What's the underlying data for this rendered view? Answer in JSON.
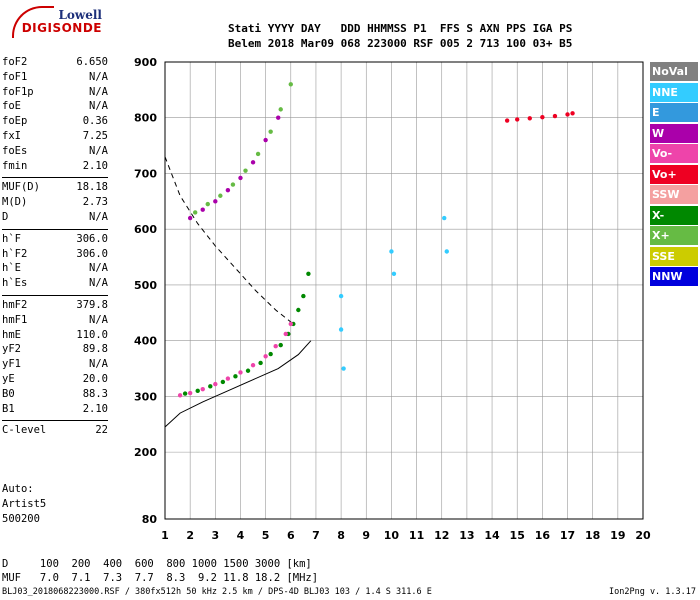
{
  "logo": {
    "brand": "Lowell",
    "product": "DIGISONDE"
  },
  "header": {
    "line1": "Stati YYYY DAY   DDD HHMMSS P1  FFS S AXN PPS IGA PS",
    "line2": "Belem 2018 Mar09 068 223000 RSF 005 2 713 100 03+ B5"
  },
  "params": [
    {
      "key": "foF2",
      "value": "6.650"
    },
    {
      "key": "foF1",
      "value": "N/A"
    },
    {
      "key": "foF1p",
      "value": "N/A"
    },
    {
      "key": "foE",
      "value": "N/A"
    },
    {
      "key": "foEp",
      "value": "0.36"
    },
    {
      "key": "fxI",
      "value": "7.25"
    },
    {
      "key": "foEs",
      "value": "N/A"
    },
    {
      "key": "fmin",
      "value": "2.10"
    }
  ],
  "params2": [
    {
      "key": "MUF(D)",
      "value": "18.18"
    },
    {
      "key": "M(D)",
      "value": "2.73"
    },
    {
      "key": "D",
      "value": "N/A"
    }
  ],
  "params3": [
    {
      "key": "h`F",
      "value": "306.0"
    },
    {
      "key": "h`F2",
      "value": "306.0"
    },
    {
      "key": "h`E",
      "value": "N/A"
    },
    {
      "key": "h`Es",
      "value": "N/A"
    }
  ],
  "params4": [
    {
      "key": "hmF2",
      "value": "379.8"
    },
    {
      "key": "hmF1",
      "value": "N/A"
    },
    {
      "key": "hmE",
      "value": "110.0"
    },
    {
      "key": "yF2",
      "value": "89.8"
    },
    {
      "key": "yF1",
      "value": "N/A"
    },
    {
      "key": "yE",
      "value": "20.0"
    },
    {
      "key": "B0",
      "value": "88.3"
    },
    {
      "key": "B1",
      "value": "2.10"
    }
  ],
  "params5": [
    {
      "key": "C-level",
      "value": "22"
    }
  ],
  "auto": {
    "line1": "Auto:",
    "line2": "Artist5",
    "line3": "500200"
  },
  "dmuf": {
    "d_line": "D     100  200  400  600  800 1000 1500 3000 [km]",
    "muf_line": "MUF   7.0  7.1  7.3  7.7  8.3  9.2 11.8 18.2 [MHz]"
  },
  "footer": {
    "left": "BLJ03_2018068223000.RSF / 380fx512h 50 kHz 2.5 km / DPS-4D BLJ03 103 / 1.4 S 311.6 E",
    "right": "Ion2Png v. 1.3.17"
  },
  "legend": [
    {
      "label": "NoVal",
      "color": "#808080"
    },
    {
      "label": "NNE",
      "color": "#33ccff"
    },
    {
      "label": "E",
      "color": "#3399dd"
    },
    {
      "label": "W",
      "color": "#aa00aa"
    },
    {
      "label": "Vo-",
      "color": "#ee44aa"
    },
    {
      "label": "Vo+",
      "color": "#ee0022"
    },
    {
      "label": "SSW",
      "color": "#f4a0a0"
    },
    {
      "label": "X-",
      "color": "#008800"
    },
    {
      "label": "X+",
      "color": "#66bb44"
    },
    {
      "label": "SSE",
      "color": "#cccc00"
    },
    {
      "label": "NNW",
      "color": "#0000dd"
    }
  ],
  "chart_data": {
    "type": "scatter",
    "xlabel": "",
    "ylabel": "",
    "xlim": [
      1,
      20
    ],
    "ylim": [
      80,
      900
    ],
    "x_ticks": [
      1,
      2,
      3,
      4,
      5,
      6,
      7,
      8,
      9,
      10,
      11,
      12,
      13,
      14,
      15,
      16,
      17,
      18,
      19,
      20
    ],
    "y_ticks": [
      80,
      200,
      300,
      400,
      500,
      600,
      700,
      800,
      900
    ],
    "grid": true,
    "series": [
      {
        "name": "X-",
        "color": "#008800",
        "x": [
          1.8,
          2.3,
          2.8,
          3.3,
          3.8,
          4.3,
          4.8,
          5.2,
          5.6,
          5.9,
          6.1,
          6.3,
          6.5,
          6.7
        ],
        "y": [
          305,
          310,
          318,
          326,
          336,
          346,
          360,
          376,
          392,
          412,
          430,
          455,
          480,
          520
        ]
      },
      {
        "name": "Vo-",
        "color": "#ee44aa",
        "x": [
          1.6,
          2.0,
          2.5,
          3.0,
          3.5,
          4.0,
          4.5,
          5.0,
          5.4,
          5.8,
          6.0
        ],
        "y": [
          302,
          306,
          313,
          322,
          332,
          343,
          356,
          372,
          390,
          412,
          430
        ]
      },
      {
        "name": "W",
        "color": "#aa00aa",
        "x": [
          2.0,
          2.5,
          3.0,
          3.5,
          4.0,
          4.5,
          5.0,
          5.5
        ],
        "y": [
          620,
          635,
          650,
          670,
          692,
          720,
          760,
          800
        ]
      },
      {
        "name": "X+",
        "color": "#66bb44",
        "x": [
          2.2,
          2.7,
          3.2,
          3.7,
          4.2,
          4.7,
          5.2,
          5.6,
          6.0
        ],
        "y": [
          630,
          645,
          660,
          680,
          705,
          735,
          775,
          815,
          860
        ]
      },
      {
        "name": "Vo+",
        "color": "#ee0022",
        "x": [
          14.6,
          15.0,
          15.5,
          16.0,
          16.5,
          17.0,
          17.2
        ],
        "y": [
          795,
          797,
          799,
          801,
          803,
          806,
          808
        ]
      },
      {
        "name": "NNE",
        "color": "#33ccff",
        "x": [
          8.0,
          8.0,
          8.1,
          10.0,
          10.1,
          12.1,
          12.2
        ],
        "y": [
          480,
          420,
          350,
          560,
          520,
          620,
          560
        ]
      }
    ],
    "lines": [
      {
        "name": "true-height",
        "style": "solid",
        "x": [
          1.0,
          1.6,
          2.5,
          3.5,
          4.5,
          5.5,
          6.3,
          6.8
        ],
        "y": [
          245,
          270,
          290,
          310,
          330,
          350,
          375,
          400
        ]
      },
      {
        "name": "model",
        "style": "dashed",
        "x": [
          1.0,
          1.6,
          2.3,
          3.0,
          3.8,
          4.6,
          5.4,
          6.1
        ],
        "y": [
          730,
          660,
          610,
          570,
          530,
          490,
          455,
          430
        ]
      }
    ]
  }
}
